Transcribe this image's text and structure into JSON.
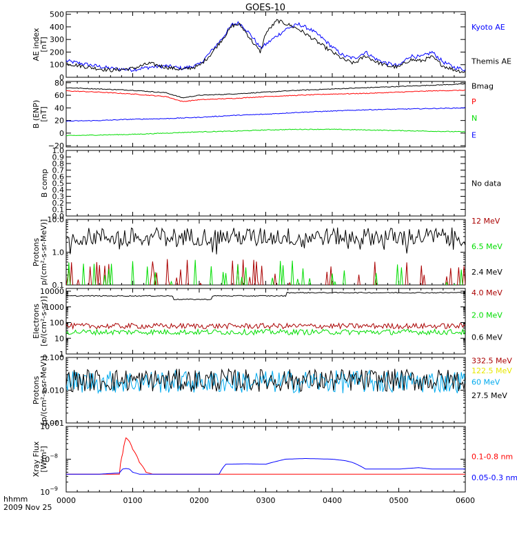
{
  "title": "GOES-10",
  "time_axis": {
    "ticks": [
      "0000",
      "0100",
      "0200",
      "0300",
      "0400",
      "0500",
      "0600"
    ],
    "label_line1": "hhmm",
    "label_line2": "2009 Nov 25",
    "range_hours": [
      0,
      6
    ]
  },
  "colors": {
    "black": "#000000",
    "blue": "#0000ff",
    "red": "#ff0000",
    "darkred": "#aa0000",
    "green": "#00dd00",
    "yellow": "#e8e800",
    "cyan": "#00aaee"
  },
  "chart_data": [
    {
      "id": "ae",
      "type": "line",
      "ylabel": [
        "AE index",
        "[nT]"
      ],
      "ylim": [
        0,
        520
      ],
      "yticks": [
        0,
        100,
        200,
        300,
        400,
        500
      ],
      "ytick_labels": [
        "0",
        "100",
        "200",
        "300",
        "400",
        "500"
      ],
      "x_hours": [
        0,
        0.33,
        0.67,
        1.0,
        1.25,
        1.5,
        1.75,
        2.0,
        2.17,
        2.33,
        2.5,
        2.6,
        2.67,
        2.83,
        2.92,
        3.0,
        3.17,
        3.33,
        3.5,
        3.67,
        3.83,
        4.0,
        4.17,
        4.33,
        4.5,
        4.67,
        4.83,
        5.0,
        5.17,
        5.33,
        5.5,
        5.67,
        5.83,
        6.0
      ],
      "series": [
        {
          "name": "Kyoto AE",
          "color": "blue",
          "label_y": 400,
          "values": [
            130,
            100,
            70,
            60,
            80,
            90,
            70,
            100,
            200,
            300,
            420,
            430,
            400,
            300,
            230,
            260,
            330,
            390,
            420,
            380,
            320,
            240,
            170,
            150,
            200,
            140,
            110,
            90,
            170,
            160,
            200,
            120,
            80,
            60
          ]
        },
        {
          "name": "Themis AE",
          "color": "black",
          "label_y": 130,
          "values": [
            110,
            80,
            55,
            70,
            110,
            80,
            60,
            90,
            180,
            290,
            410,
            420,
            380,
            260,
            200,
            350,
            450,
            420,
            380,
            320,
            260,
            200,
            140,
            110,
            170,
            120,
            90,
            80,
            140,
            130,
            160,
            90,
            60,
            40
          ]
        }
      ]
    },
    {
      "id": "b",
      "type": "line",
      "ylabel": [
        "B (ENP)",
        "[nT]"
      ],
      "ylim": [
        -22,
        82
      ],
      "yticks": [
        -20,
        0,
        20,
        40,
        60,
        80
      ],
      "ytick_labels": [
        "−20",
        "0",
        "20",
        "40",
        "60",
        "80"
      ],
      "x_hours": [
        0,
        0.5,
        1.0,
        1.5,
        1.75,
        2.0,
        2.5,
        3.0,
        3.5,
        4.0,
        4.5,
        5.0,
        5.5,
        6.0
      ],
      "series": [
        {
          "name": "Bmag",
          "color": "black",
          "label_y": 75,
          "values": [
            72,
            70,
            68,
            64,
            56,
            60,
            62,
            65,
            68,
            70,
            72,
            74,
            76,
            78
          ]
        },
        {
          "name": "P",
          "color": "red",
          "label_y": 50,
          "values": [
            67,
            65,
            62,
            58,
            50,
            53,
            55,
            58,
            60,
            62,
            63,
            65,
            67,
            68
          ]
        },
        {
          "name": "N",
          "color": "green",
          "label_y": 24,
          "values": [
            -4,
            -3,
            -2,
            0,
            1,
            2,
            3,
            5,
            6,
            6,
            5,
            4,
            3,
            2
          ]
        },
        {
          "name": "E",
          "color": "blue",
          "label_y": -3,
          "values": [
            19,
            20,
            22,
            23,
            24,
            25,
            28,
            30,
            33,
            35,
            37,
            38,
            39,
            40
          ]
        }
      ]
    },
    {
      "id": "bcomp",
      "type": "line",
      "ylabel": [
        "B comp"
      ],
      "ylim": [
        0,
        1.0
      ],
      "yticks": [
        0,
        0.1,
        0.2,
        0.3,
        0.4,
        0.5,
        0.6,
        0.7,
        0.8,
        0.9,
        1.0
      ],
      "ytick_labels": [
        "0.0",
        "0.1",
        "0.2",
        "0.3",
        "0.4",
        "0.5",
        "0.6",
        "0.7",
        "0.8",
        "0.9",
        "1.0"
      ],
      "status": "No data",
      "series": []
    },
    {
      "id": "protons",
      "type": "line",
      "scale": "log",
      "ylabel": [
        "Protons",
        "p/(cm²-s-sr-MeV)]"
      ],
      "ylim": [
        0.1,
        10
      ],
      "yticks": [
        0.1,
        1.0,
        10.0
      ],
      "ytick_labels": [
        "0.1",
        "1.0",
        "10.0"
      ],
      "series": [
        {
          "name": "12 MeV",
          "color": "darkred",
          "label_y": 9,
          "level": 0.1,
          "note": "mostly below axis"
        },
        {
          "name": "6.5 MeV",
          "color": "green",
          "label_y": 1.5,
          "level": 0.12
        },
        {
          "name": "2.4 MeV",
          "color": "black",
          "label_y": 0.25,
          "level": 3.0
        }
      ]
    },
    {
      "id": "electrons",
      "type": "line",
      "scale": "log",
      "ylabel": [
        "Electrons",
        "[e/(cm²-s-sr)]"
      ],
      "ylim": [
        1,
        15000
      ],
      "yticks": [
        1,
        10,
        100,
        1000,
        10000
      ],
      "ytick_labels": [
        "1",
        "10",
        "100",
        "1000",
        "10000"
      ],
      "series": [
        {
          "name": "4.0 MeV",
          "color": "darkred",
          "label_y": 8000,
          "level": 60
        },
        {
          "name": "2.0 MeV",
          "color": "green",
          "label_y": 300,
          "level": 25
        },
        {
          "name": "0.6 MeV",
          "color": "black",
          "label_y": 12,
          "level": 5000
        }
      ]
    },
    {
      "id": "hiprotons",
      "type": "line",
      "scale": "log",
      "ylabel": [
        "Protons",
        "[p/(cm²-s-sr-MeV)]"
      ],
      "ylim": [
        0.001,
        0.1
      ],
      "yticks": [
        0.001,
        0.01,
        0.1
      ],
      "ytick_labels": [
        "0.001",
        "0.010",
        "0.100"
      ],
      "series": [
        {
          "name": "332.5 MeV",
          "color": "darkred",
          "label_y": 0.08
        },
        {
          "name": "122.5 MeV",
          "color": "yellow",
          "label_y": 0.04
        },
        {
          "name": "60 MeV",
          "color": "cyan",
          "label_y": 0.018,
          "level": 0.018
        },
        {
          "name": "27.5 MeV",
          "color": "black",
          "label_y": 0.007,
          "level": 0.02
        }
      ]
    },
    {
      "id": "xray",
      "type": "line",
      "scale": "log",
      "ylabel": [
        "Xray Flux",
        "[W/m²]"
      ],
      "ylim": [
        1e-09,
        1e-07
      ],
      "yticks": [
        1e-09,
        1e-08,
        1e-07
      ],
      "ytick_labels": [
        "10",
        "10",
        "10"
      ],
      "ytick_exps": [
        "−9",
        "−8",
        "−7"
      ],
      "x_hours": [
        0,
        0.5,
        0.8,
        0.85,
        0.9,
        0.95,
        1.0,
        1.1,
        1.2,
        1.3,
        2.0,
        2.3,
        2.4,
        2.7,
        3.0,
        3.3,
        3.6,
        4.0,
        4.2,
        4.3,
        4.5,
        5.0,
        5.3,
        5.5,
        6.0
      ],
      "series": [
        {
          "name": "0.1-0.8 nm",
          "color": "red",
          "label_y": 1.2e-08,
          "values": [
            3.5e-09,
            3.5e-09,
            3.5e-09,
            1.5e-08,
            4.5e-08,
            3.5e-08,
            2e-08,
            8e-09,
            4e-09,
            3.5e-09,
            3.5e-09,
            3.5e-09,
            3.5e-09,
            3.5e-09,
            3.5e-09,
            3.5e-09,
            3.5e-09,
            3.5e-09,
            3.5e-09,
            3.5e-09,
            3.5e-09,
            3.5e-09,
            3.5e-09,
            3.5e-09,
            3.5e-09
          ]
        },
        {
          "name": "0.05-0.3 nm",
          "color": "blue",
          "label_y": 2.8e-09,
          "values": [
            3.5e-09,
            3.5e-09,
            3.8e-09,
            5e-09,
            5.2e-09,
            5e-09,
            4e-09,
            3.5e-09,
            3.5e-09,
            3.5e-09,
            3.5e-09,
            3.5e-09,
            7e-09,
            7.2e-09,
            7e-09,
            1e-08,
            1.05e-08,
            1e-08,
            9e-09,
            8e-09,
            5e-09,
            5e-09,
            5.5e-09,
            5e-09,
            5e-09
          ]
        }
      ]
    }
  ]
}
